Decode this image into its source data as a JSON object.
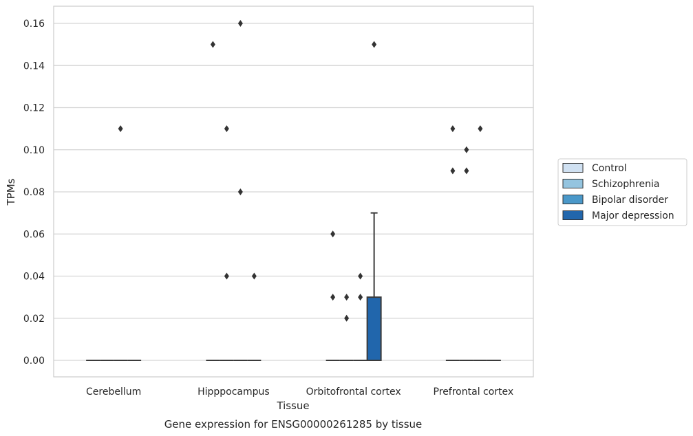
{
  "chart_data": {
    "type": "box",
    "xlabel": "Tissue",
    "ylabel": "TPMs",
    "caption": "Gene expression for ENSG00000261285 by tissue",
    "categories": [
      "Cerebellum",
      "Hipppocampus",
      "Orbitofrontal cortex",
      "Prefrontal cortex"
    ],
    "ylim": [
      -0.008,
      0.168
    ],
    "yticks": [
      0.0,
      0.02,
      0.04,
      0.06,
      0.08,
      0.1,
      0.12,
      0.14,
      0.16
    ],
    "ytick_labels": [
      "0.00",
      "0.02",
      "0.04",
      "0.06",
      "0.08",
      "0.10",
      "0.12",
      "0.14",
      "0.16"
    ],
    "grid": "horizontal",
    "legend_position": "right",
    "series": [
      {
        "name": "Control",
        "color": "#d0e1f2",
        "boxes": [
          {
            "q1": 0,
            "median": 0,
            "q3": 0,
            "whisker_low": 0,
            "whisker_high": 0,
            "outliers": []
          },
          {
            "q1": 0,
            "median": 0,
            "q3": 0,
            "whisker_low": 0,
            "whisker_high": 0,
            "outliers": [
              0.15
            ]
          },
          {
            "q1": 0,
            "median": 0,
            "q3": 0,
            "whisker_low": 0,
            "whisker_high": 0,
            "outliers": [
              0.06,
              0.03
            ]
          },
          {
            "q1": 0,
            "median": 0,
            "q3": 0,
            "whisker_low": 0,
            "whisker_high": 0,
            "outliers": [
              0.11,
              0.09
            ]
          }
        ]
      },
      {
        "name": "Schizophrenia",
        "color": "#94c4df",
        "boxes": [
          {
            "q1": 0,
            "median": 0,
            "q3": 0,
            "whisker_low": 0,
            "whisker_high": 0,
            "outliers": []
          },
          {
            "q1": 0,
            "median": 0,
            "q3": 0,
            "whisker_low": 0,
            "whisker_high": 0,
            "outliers": [
              0.11,
              0.04
            ]
          },
          {
            "q1": 0,
            "median": 0,
            "q3": 0,
            "whisker_low": 0,
            "whisker_high": 0,
            "outliers": [
              0.03,
              0.02
            ]
          },
          {
            "q1": 0,
            "median": 0,
            "q3": 0,
            "whisker_low": 0,
            "whisker_high": 0,
            "outliers": [
              0.1,
              0.09
            ]
          }
        ]
      },
      {
        "name": "Bipolar disorder",
        "color": "#4a98c9",
        "boxes": [
          {
            "q1": 0,
            "median": 0,
            "q3": 0,
            "whisker_low": 0,
            "whisker_high": 0,
            "outliers": [
              0.11
            ]
          },
          {
            "q1": 0,
            "median": 0,
            "q3": 0,
            "whisker_low": 0,
            "whisker_high": 0,
            "outliers": [
              0.16,
              0.08
            ]
          },
          {
            "q1": 0,
            "median": 0,
            "q3": 0,
            "whisker_low": 0,
            "whisker_high": 0,
            "outliers": [
              0.04,
              0.03
            ]
          },
          {
            "q1": 0,
            "median": 0,
            "q3": 0,
            "whisker_low": 0,
            "whisker_high": 0,
            "outliers": [
              0.11
            ]
          }
        ]
      },
      {
        "name": "Major depression",
        "color": "#2166ac",
        "boxes": [
          {
            "q1": 0,
            "median": 0,
            "q3": 0,
            "whisker_low": 0,
            "whisker_high": 0,
            "outliers": []
          },
          {
            "q1": 0,
            "median": 0,
            "q3": 0,
            "whisker_low": 0,
            "whisker_high": 0,
            "outliers": [
              0.04
            ]
          },
          {
            "q1": 0,
            "median": 0,
            "q3": 0.03,
            "whisker_low": 0,
            "whisker_high": 0.07,
            "outliers": [
              0.15
            ]
          },
          {
            "q1": 0,
            "median": 0,
            "q3": 0,
            "whisker_low": 0,
            "whisker_high": 0,
            "outliers": []
          }
        ]
      }
    ]
  }
}
